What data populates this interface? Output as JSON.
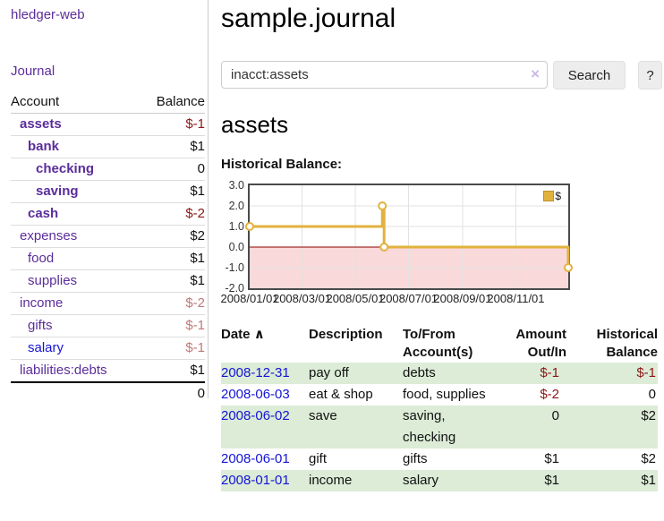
{
  "app": {
    "brand": "hledger-web",
    "nav_journal": "Journal"
  },
  "colors": {
    "brand_purple": "#5b2d9b",
    "link_blue": "#1414d6",
    "negative_strong": "#8b1717",
    "negative_soft": "#c17878",
    "row_stripe_green": "#dcecd7",
    "chart_line_gold": "#e2b23e",
    "chart_negative_fill": "#f9d9d9",
    "chart_zero_line": "#8b0000"
  },
  "sidebar": {
    "header": {
      "account": "Account",
      "balance": "Balance"
    },
    "accounts": [
      {
        "name": "assets",
        "balance": "$-1"
      },
      {
        "name": "bank",
        "balance": "$1"
      },
      {
        "name": "checking",
        "balance": "0"
      },
      {
        "name": "saving",
        "balance": "$1"
      },
      {
        "name": "cash",
        "balance": "$-2"
      },
      {
        "name": "expenses",
        "balance": "$2"
      },
      {
        "name": "food",
        "balance": "$1"
      },
      {
        "name": "supplies",
        "balance": "$1"
      },
      {
        "name": "income",
        "balance": "$-2"
      },
      {
        "name": "gifts",
        "balance": "$-1"
      },
      {
        "name": "salary",
        "balance": "$-1"
      },
      {
        "name": "liabilities:debts",
        "balance": "$1"
      }
    ],
    "total": "0"
  },
  "main": {
    "title": "sample.journal",
    "search": {
      "value": "inacct:assets",
      "clear_icon": "×",
      "search_button": "Search",
      "help_button": "?"
    },
    "account_heading": "assets",
    "chart_label": "Historical Balance:"
  },
  "chart_data": {
    "type": "line",
    "step": true,
    "title": "Historical Balance",
    "ylim": [
      -2,
      3
    ],
    "y_ticks": [
      3.0,
      2.0,
      1.0,
      0.0,
      -1.0,
      -2.0
    ],
    "x_range": [
      "2008-01-01",
      "2008-12-31"
    ],
    "x_ticks": [
      {
        "date": "2008-01-01",
        "label": "2008/01/01"
      },
      {
        "date": "2008-03-01",
        "label": "2008/03/01"
      },
      {
        "date": "2008-05-01",
        "label": "2008/05/01"
      },
      {
        "date": "2008-07-01",
        "label": "2008/07/01"
      },
      {
        "date": "2008-09-01",
        "label": "2008/09/01"
      },
      {
        "date": "2008-11-01",
        "label": "2008/11/01"
      }
    ],
    "series": [
      {
        "name": "$",
        "color": "#e2b23e",
        "points": [
          [
            "2008-01-01",
            1
          ],
          [
            "2008-06-01",
            2
          ],
          [
            "2008-06-03",
            0
          ],
          [
            "2008-12-31",
            -1
          ]
        ]
      }
    ],
    "negative_region_color": "#f9d9d9",
    "zero_line_color": "#8b0000",
    "grid": true,
    "legend_position": "top-right"
  },
  "register": {
    "headers": {
      "date": "Date",
      "sort_icon": "∧",
      "description": "Description",
      "account": [
        "To/From",
        "Account(s)"
      ],
      "amount": [
        "Amount",
        "Out/In"
      ],
      "balance": [
        "Historical",
        "Balance"
      ]
    },
    "rows": [
      {
        "date": "2008-12-31",
        "description": "pay off",
        "accounts": "debts",
        "amount": "$-1",
        "balance": "$-1"
      },
      {
        "date": "2008-06-03",
        "description": "eat & shop",
        "accounts": "food, supplies",
        "amount": "$-2",
        "balance": "0"
      },
      {
        "date": "2008-06-02",
        "description": "save",
        "accounts": "saving,\nchecking",
        "amount": "0",
        "balance": "$2"
      },
      {
        "date": "2008-06-01",
        "description": "gift",
        "accounts": "gifts",
        "amount": "$1",
        "balance": "$2"
      },
      {
        "date": "2008-01-01",
        "description": "income",
        "accounts": "salary",
        "amount": "$1",
        "balance": "$1"
      }
    ]
  }
}
